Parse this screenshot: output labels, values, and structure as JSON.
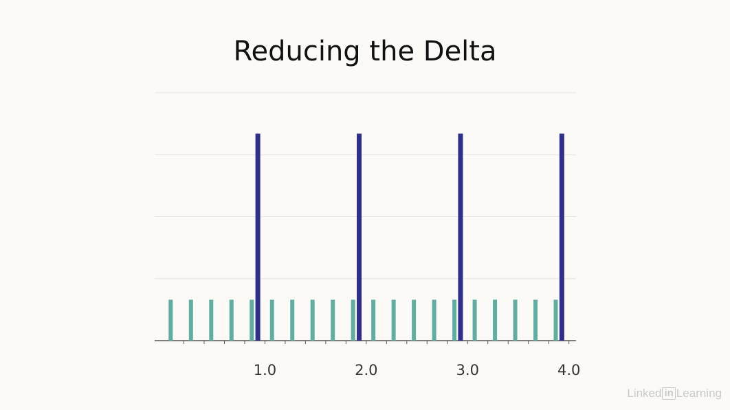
{
  "chart_data": {
    "type": "bar",
    "title": "Reducing the Delta",
    "xlabel": "",
    "ylabel": "",
    "xlim": [
      0.0,
      4.0
    ],
    "ylim": [
      0,
      4
    ],
    "grid": true,
    "colors": {
      "fine": "#5fae9f",
      "coarse": "#2e2f8c",
      "gridline": "#e2e2e2",
      "axis": "#555555",
      "background": "#fbfaf6"
    },
    "x_tick_labels": [
      {
        "x": 1.0,
        "label": "1.0"
      },
      {
        "x": 2.0,
        "label": "2.0"
      },
      {
        "x": 3.0,
        "label": "3.0"
      },
      {
        "x": 4.0,
        "label": "4.0"
      }
    ],
    "series": [
      {
        "color": "#5fae9f",
        "x": [
          0.07,
          0.27,
          0.47,
          0.67,
          0.87,
          1.07,
          1.27,
          1.47,
          1.67,
          1.87,
          2.07,
          2.27,
          2.47,
          2.67,
          2.87,
          3.07,
          3.27,
          3.47,
          3.67,
          3.87
        ],
        "values": [
          0.66,
          0.66,
          0.66,
          0.66,
          0.66,
          0.66,
          0.66,
          0.66,
          0.66,
          0.66,
          0.66,
          0.66,
          0.66,
          0.66,
          0.66,
          0.66,
          0.66,
          0.66,
          0.66,
          0.66
        ]
      },
      {
        "color": "#2e2f8c",
        "x": [
          0.93,
          1.93,
          2.93,
          3.93
        ],
        "values": [
          3.34,
          3.34,
          3.34,
          3.34
        ]
      }
    ]
  },
  "watermark": {
    "left_text": "Linked",
    "box_text": "in",
    "right_text": "Learning"
  }
}
